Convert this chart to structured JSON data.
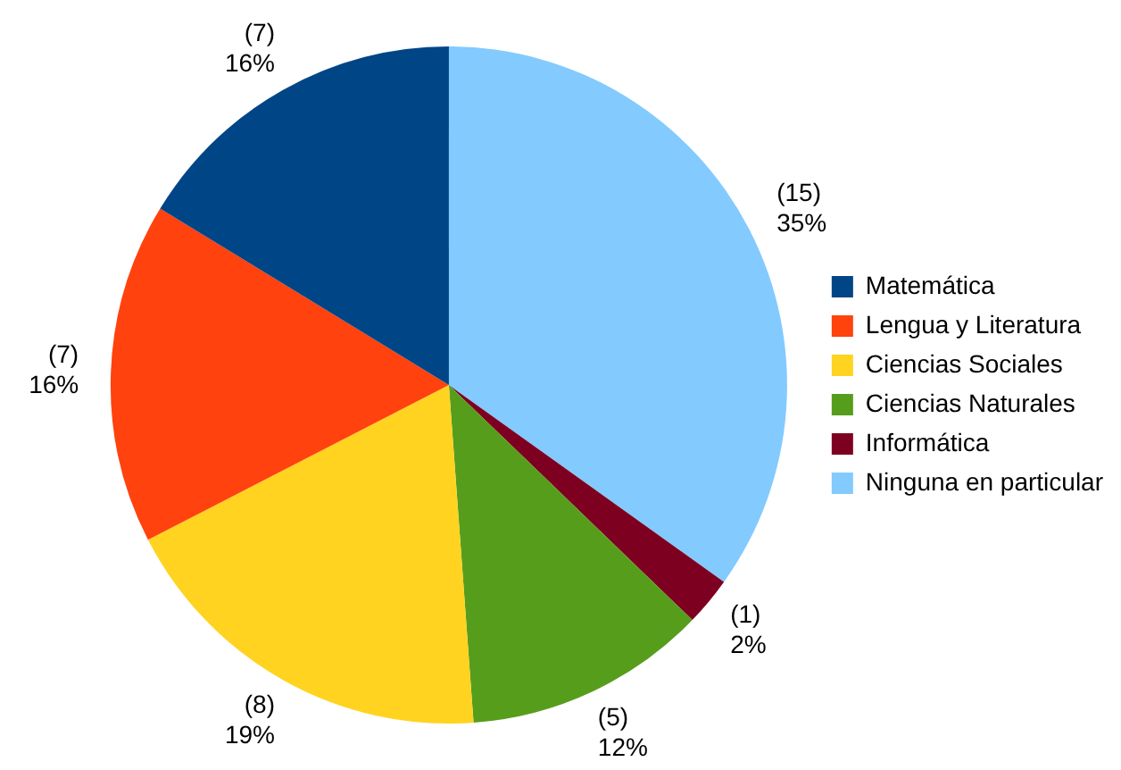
{
  "chart_data": {
    "type": "pie",
    "categories": [
      "Matemática",
      "Lengua y Literatura",
      "Ciencias Sociales",
      "Ciencias Naturales",
      "Informática",
      "Ninguna en particular"
    ],
    "values": [
      7,
      7,
      8,
      5,
      1,
      15
    ],
    "colors": [
      "#004586",
      "#ff420e",
      "#ffd320",
      "#579d1c",
      "#7e0021",
      "#83caff"
    ],
    "value_labels": [
      "(7)\n16%",
      "(7)\n16%",
      "(8)\n19%",
      "(5)\n12%",
      "(1)\n2%",
      "(15)\n35%"
    ],
    "legend": "right"
  }
}
